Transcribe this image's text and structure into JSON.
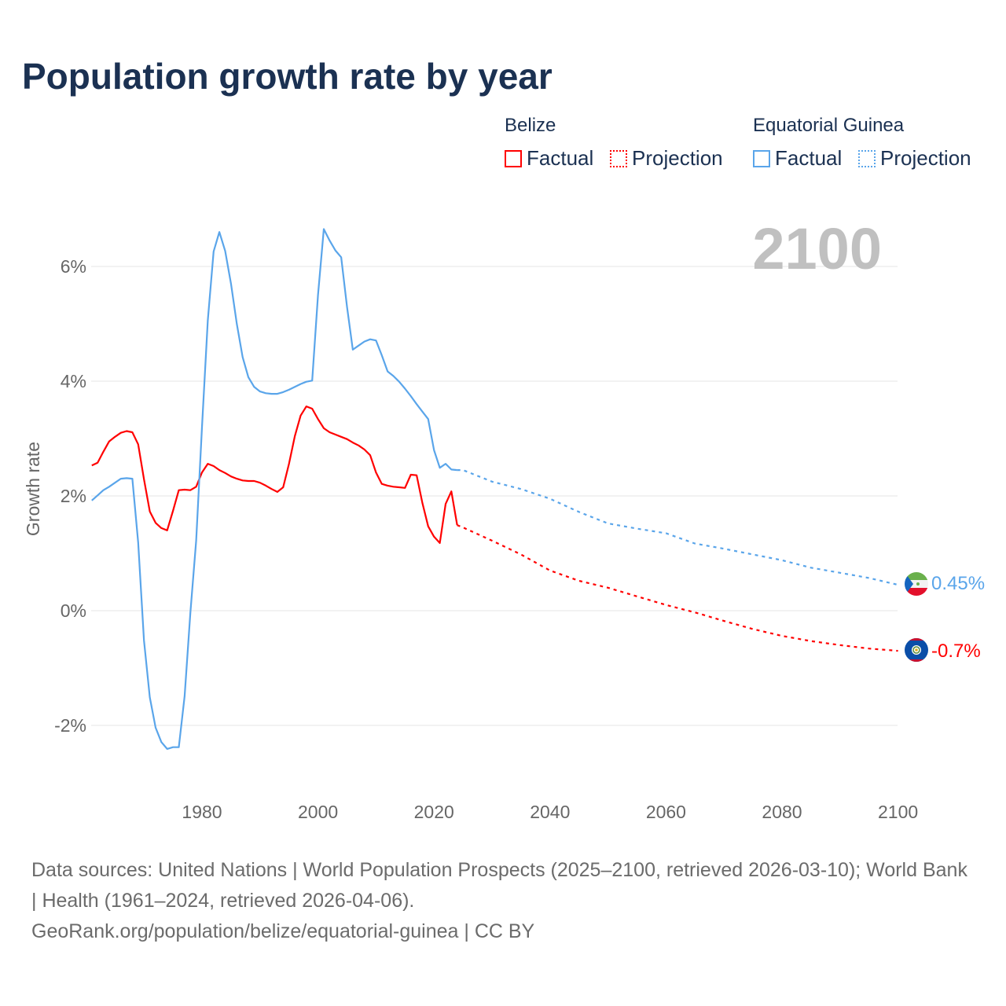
{
  "title": "Population growth rate by year",
  "legend": {
    "groups": [
      {
        "name": "Belize",
        "factual": "Factual",
        "projection": "Projection",
        "color": "#ff0000"
      },
      {
        "name": "Equatorial Guinea",
        "factual": "Factual",
        "projection": "Projection",
        "color": "#5aa5ea"
      }
    ]
  },
  "year_label": "2100",
  "footer": {
    "sources": "Data sources: United Nations | World Population Prospects (2025–2100, retrieved 2026-03-10); World Bank | Health (1961–2024, retrieved 2026-04-06).",
    "credit": "GeoRank.org/population/belize/equatorial-guinea | CC BY"
  },
  "chart_data": {
    "type": "line",
    "title": "Population growth rate by year",
    "xlabel": "",
    "ylabel": "Growth rate",
    "xlim": [
      1961,
      2100
    ],
    "ylim": [
      -2.9,
      7.0
    ],
    "x_ticks": [
      1980,
      2000,
      2020,
      2040,
      2060,
      2080,
      2100
    ],
    "y_ticks": [
      -2,
      0,
      2,
      4,
      6
    ],
    "y_tick_labels": [
      "-2%",
      "0%",
      "2%",
      "4%",
      "6%"
    ],
    "grid": true,
    "legend_position": "top-right",
    "series": [
      {
        "name": "Belize",
        "color": "#ff0000",
        "end_label": "-0.7%",
        "factual": {
          "x_start": 1961,
          "values": [
            2.53,
            2.58,
            2.77,
            2.95,
            3.03,
            3.1,
            3.13,
            3.11,
            2.9,
            2.29,
            1.73,
            1.53,
            1.44,
            1.4,
            1.74,
            2.1,
            2.11,
            2.1,
            2.16,
            2.41,
            2.56,
            2.52,
            2.45,
            2.4,
            2.34,
            2.3,
            2.27,
            2.26,
            2.26,
            2.23,
            2.18,
            2.12,
            2.07,
            2.15,
            2.56,
            3.04,
            3.4,
            3.56,
            3.52,
            3.34,
            3.18,
            3.11,
            3.07,
            3.03,
            2.99,
            2.93,
            2.88,
            2.81,
            2.71,
            2.41,
            2.21,
            2.18,
            2.16,
            2.15,
            2.14,
            2.37,
            2.36,
            1.88,
            1.47,
            1.29,
            1.18,
            1.86,
            2.08,
            1.49
          ]
        },
        "projection": {
          "x": [
            2024,
            2025,
            2030,
            2035,
            2040,
            2045,
            2050,
            2055,
            2060,
            2065,
            2070,
            2075,
            2080,
            2085,
            2090,
            2095,
            2100
          ],
          "values": [
            1.49,
            1.45,
            1.22,
            0.98,
            0.7,
            0.52,
            0.4,
            0.25,
            0.1,
            -0.03,
            -0.18,
            -0.32,
            -0.44,
            -0.53,
            -0.6,
            -0.66,
            -0.7
          ]
        }
      },
      {
        "name": "Equatorial Guinea",
        "color": "#5aa5ea",
        "end_label": "0.45%",
        "factual": {
          "x_start": 1961,
          "values": [
            1.92,
            2.01,
            2.1,
            2.16,
            2.23,
            2.3,
            2.31,
            2.3,
            1.19,
            -0.52,
            -1.51,
            -2.04,
            -2.29,
            -2.41,
            -2.38,
            -2.38,
            -1.49,
            -0.04,
            1.22,
            3.2,
            5.06,
            6.26,
            6.6,
            6.27,
            5.7,
            5.0,
            4.42,
            4.07,
            3.9,
            3.82,
            3.79,
            3.78,
            3.78,
            3.81,
            3.85,
            3.9,
            3.95,
            3.99,
            4.01,
            5.5,
            6.65,
            6.45,
            6.28,
            6.16,
            5.3,
            4.55,
            4.62,
            4.69,
            4.73,
            4.71,
            4.45,
            4.17,
            4.09,
            3.99,
            3.87,
            3.74,
            3.6,
            3.47,
            3.34,
            2.8,
            2.49,
            2.56,
            2.46,
            2.45
          ]
        },
        "projection": {
          "x": [
            2024,
            2025,
            2030,
            2035,
            2040,
            2045,
            2050,
            2055,
            2060,
            2065,
            2070,
            2075,
            2080,
            2085,
            2090,
            2095,
            2100
          ],
          "values": [
            2.45,
            2.45,
            2.25,
            2.12,
            1.95,
            1.72,
            1.52,
            1.43,
            1.35,
            1.17,
            1.08,
            0.98,
            0.88,
            0.75,
            0.66,
            0.57,
            0.45
          ]
        }
      }
    ]
  }
}
